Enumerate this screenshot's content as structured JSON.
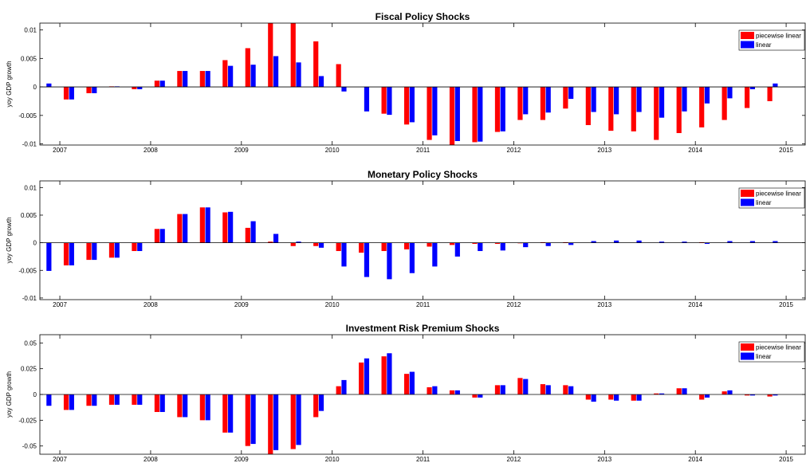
{
  "colors": {
    "piecewise": "#ff0000",
    "linear": "#0000ff"
  },
  "chart_data": [
    {
      "type": "bar",
      "title": "Fiscal Policy Shocks",
      "ylabel": "yoy GDP growth",
      "ylim": [
        -0.0102,
        0.0112
      ],
      "yticks": [
        -0.01,
        -0.005,
        0,
        0.005,
        0.01
      ],
      "ytick_labels": [
        "-0.01",
        "-0.005",
        "0",
        "0.005",
        "0.01"
      ],
      "xticks": [
        2007,
        2008,
        2009,
        2010,
        2011,
        2012,
        2013,
        2014,
        2015
      ],
      "xtick_labels": [
        "2007",
        "2008",
        "2009",
        "2010",
        "2011",
        "2012",
        "2013",
        "2014",
        "2015"
      ],
      "legend": "top-right",
      "series": [
        {
          "name": "piecewise linear",
          "values": [
            0,
            -0.0022,
            -0.0011,
            0.0001,
            -0.0004,
            0.0011,
            0.0028,
            0.0028,
            0.0047,
            0.0068,
            0.0112,
            0.0112,
            0.008,
            0.004,
            0,
            -0.0047,
            -0.0066,
            -0.0093,
            -0.0102,
            -0.0097,
            -0.0079,
            -0.0058,
            -0.0058,
            -0.0038,
            -0.0067,
            -0.0077,
            -0.0078,
            -0.0093,
            -0.0081,
            -0.0071,
            -0.0058,
            -0.0037,
            -0.0025
          ]
        },
        {
          "name": "linear",
          "values": [
            0.0006,
            -0.0022,
            -0.0011,
            0.0001,
            -0.0004,
            0.0011,
            0.0028,
            0.0028,
            0.0037,
            0.0039,
            0.0054,
            0.0043,
            0.0019,
            -0.0008,
            -0.0043,
            -0.0049,
            -0.0062,
            -0.0085,
            -0.0095,
            -0.0096,
            -0.0078,
            -0.0048,
            -0.0045,
            -0.0021,
            -0.0044,
            -0.0048,
            -0.0044,
            -0.0054,
            -0.0043,
            -0.0029,
            -0.002,
            -0.0004,
            0.0006
          ]
        }
      ]
    },
    {
      "type": "bar",
      "title": "Monetary Policy Shocks",
      "ylabel": "yoy GDP growth",
      "ylim": [
        -0.0103,
        0.0112
      ],
      "yticks": [
        -0.01,
        -0.005,
        0,
        0.005,
        0.01
      ],
      "ytick_labels": [
        "-0.01",
        "-0.005",
        "0",
        "0.005",
        "0.01"
      ],
      "xticks": [
        2007,
        2008,
        2009,
        2010,
        2011,
        2012,
        2013,
        2014,
        2015
      ],
      "xtick_labels": [
        "2007",
        "2008",
        "2009",
        "2010",
        "2011",
        "2012",
        "2013",
        "2014",
        "2015"
      ],
      "legend": "top-right",
      "series": [
        {
          "name": "piecewise linear",
          "values": [
            0,
            -0.0041,
            -0.0031,
            -0.0027,
            -0.0015,
            0.0025,
            0.0052,
            0.0064,
            0.0055,
            0.0027,
            0.0002,
            -0.0006,
            -0.0006,
            -0.0015,
            -0.0018,
            -0.0015,
            -0.0012,
            -0.0007,
            -0.0004,
            -0.0002,
            -0.0002,
            -0.0001,
            0.0001,
            0.0001,
            0,
            0,
            0,
            0,
            0,
            0.0001,
            0,
            0,
            0
          ]
        },
        {
          "name": "linear",
          "values": [
            -0.0051,
            -0.0041,
            -0.0031,
            -0.0027,
            -0.0015,
            0.0025,
            0.0052,
            0.0064,
            0.0056,
            0.0039,
            0.0016,
            0.0002,
            -0.0009,
            -0.0043,
            -0.0062,
            -0.0066,
            -0.0055,
            -0.0043,
            -0.0025,
            -0.0015,
            -0.0014,
            -0.0008,
            -0.0006,
            -0.0004,
            0.0003,
            0.0004,
            0.0004,
            0.0002,
            0.0002,
            -0.0002,
            0.0003,
            0.0003,
            0.0003
          ]
        }
      ]
    },
    {
      "type": "bar",
      "title": "Investment Risk Premium Shocks",
      "ylabel": "yoy GDP growth",
      "ylim": [
        -0.058,
        0.058
      ],
      "yticks": [
        -0.05,
        -0.025,
        0,
        0.025,
        0.05
      ],
      "ytick_labels": [
        "-0.05",
        "-0.025",
        "0",
        "0.025",
        "0.05"
      ],
      "xticks": [
        2007,
        2008,
        2009,
        2010,
        2011,
        2012,
        2013,
        2014,
        2015
      ],
      "xtick_labels": [
        "2007",
        "2008",
        "2009",
        "2010",
        "2011",
        "2012",
        "2013",
        "2014",
        "2015"
      ],
      "legend": "top-right",
      "series": [
        {
          "name": "piecewise linear",
          "values": [
            0,
            -0.015,
            -0.011,
            -0.01,
            -0.01,
            -0.017,
            -0.022,
            -0.025,
            -0.037,
            -0.05,
            -0.058,
            -0.053,
            -0.022,
            0.008,
            0.031,
            0.037,
            0.02,
            0.007,
            0.004,
            -0.003,
            0.009,
            0.016,
            0.01,
            0.009,
            -0.005,
            -0.005,
            -0.006,
            0.001,
            0.006,
            -0.005,
            0.003,
            -0.001,
            -0.002
          ]
        },
        {
          "name": "linear",
          "values": [
            -0.011,
            -0.015,
            -0.011,
            -0.01,
            -0.01,
            -0.017,
            -0.022,
            -0.025,
            -0.037,
            -0.048,
            -0.054,
            -0.049,
            -0.016,
            0.014,
            0.035,
            0.04,
            0.022,
            0.008,
            0.004,
            -0.003,
            0.009,
            0.015,
            0.009,
            0.008,
            -0.007,
            -0.006,
            -0.006,
            0.001,
            0.006,
            -0.003,
            0.004,
            -0.001,
            -0.001
          ]
        }
      ]
    }
  ]
}
